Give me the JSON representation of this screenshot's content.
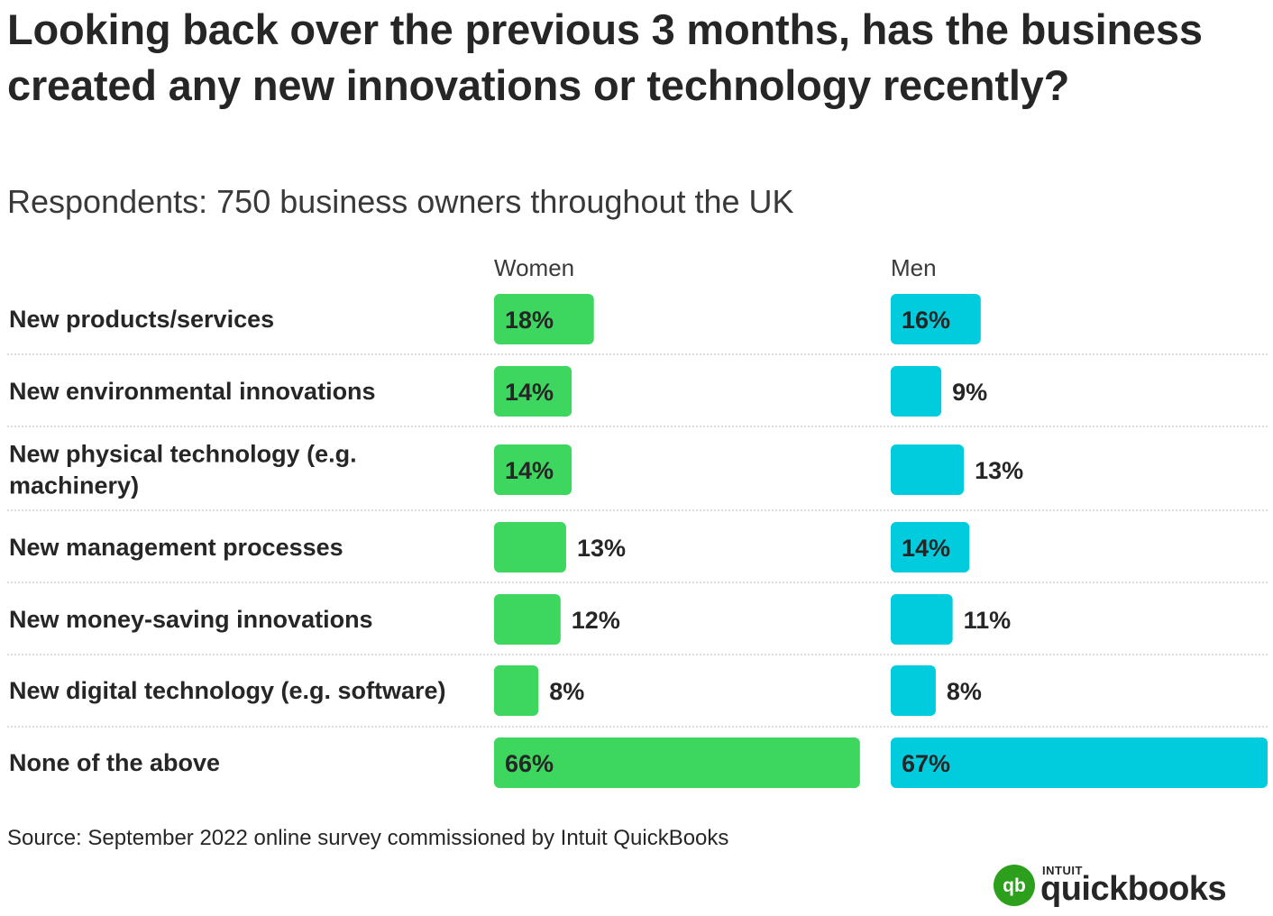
{
  "chart_data": {
    "type": "bar",
    "title": "Looking back over the previous 3 months, has the business created any new innovations or technology recently?",
    "subtitle": "Respondents: 750 business owners throughout the UK",
    "categories": [
      [
        "New products/services"
      ],
      [
        "New environmental innovations"
      ],
      [
        "New physical technology (e.g.",
        "machinery)"
      ],
      [
        "New management processes"
      ],
      [
        "New money-saving innovations"
      ],
      [
        "New digital technology (e.g. software)"
      ],
      [
        "None of the above"
      ]
    ],
    "series": [
      {
        "name": "Women",
        "color": "#3dd65f",
        "values": [
          18,
          14,
          14,
          13,
          12,
          8,
          66
        ]
      },
      {
        "name": "Men",
        "color": "#00ccdd",
        "values": [
          16,
          9,
          13,
          14,
          11,
          8,
          67
        ]
      }
    ],
    "value_suffix": "%",
    "xlim": [
      0,
      67
    ],
    "legend": "column headers above bars",
    "source": "Source: September 2022 online survey commissioned by Intuit QuickBooks"
  },
  "colors": {
    "women": "#3dd65f",
    "men": "#00ccdd",
    "divider": "#c8c8c8",
    "brand_green": "#2ca01c"
  },
  "logo": {
    "small": "INTUIT",
    "word": "quickbooks",
    "mark_glyph": "qb"
  }
}
